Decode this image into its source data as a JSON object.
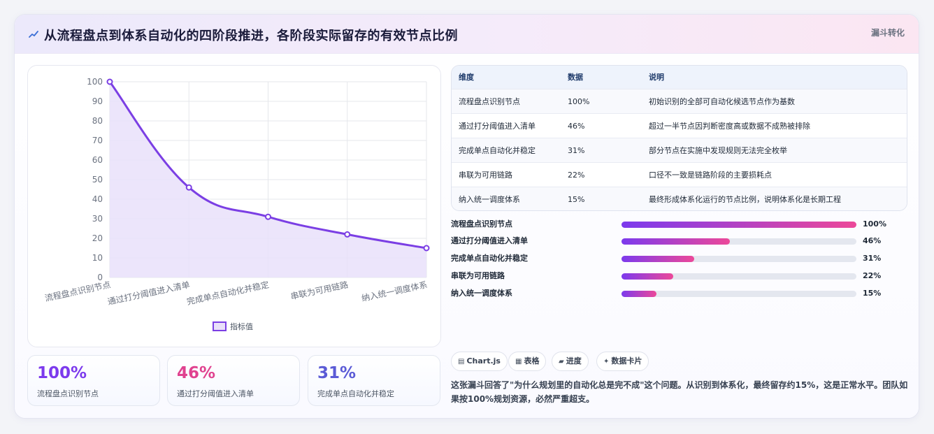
{
  "header": {
    "title_icon": "trend-icon",
    "title": "从流程盘点到体系自动化的四阶段推进，各阶段实际留存的有效节点比例",
    "tag": "漏斗转化"
  },
  "chart_data": {
    "type": "area",
    "categories": [
      "流程盘点识别节点",
      "通过打分阈值进入清单",
      "完成单点自动化并稳定",
      "串联为可用链路",
      "纳入统一调度体系"
    ],
    "series": [
      {
        "name": "指标值",
        "values": [
          100,
          46,
          31,
          22,
          15
        ]
      }
    ],
    "ylim": [
      0,
      100
    ],
    "yticks": [
      0,
      10,
      20,
      30,
      40,
      50,
      60,
      70,
      80,
      90,
      100
    ],
    "grid": true,
    "legend": "bottom",
    "colors": {
      "line": "#7b3fe4",
      "fill": "#e9e0fa"
    }
  },
  "kpis": [
    {
      "value": "100%",
      "label": "流程盘点识别节点",
      "color": "#7c3aed"
    },
    {
      "value": "46%",
      "label": "通过打分阈值进入清单",
      "color": "#e0428f"
    },
    {
      "value": "31%",
      "label": "完成单点自动化并稳定",
      "color": "#5b5bd6"
    }
  ],
  "table": {
    "headers": [
      "维度",
      "数据",
      "说明"
    ],
    "rows": [
      [
        "流程盘点识别节点",
        "100%",
        "初始识别的全部可自动化候选节点作为基数"
      ],
      [
        "通过打分阈值进入清单",
        "46%",
        "超过一半节点因判断密度高或数据不成熟被排除"
      ],
      [
        "完成单点自动化并稳定",
        "31%",
        "部分节点在实施中发现规则无法完全枚举"
      ],
      [
        "串联为可用链路",
        "22%",
        "口径不一致是链路阶段的主要损耗点"
      ],
      [
        "纳入统一调度体系",
        "15%",
        "最终形成体系化运行的节点比例，说明体系化是长期工程"
      ]
    ]
  },
  "progress": [
    {
      "label": "流程盘点识别节点",
      "value": 100,
      "display": "100%"
    },
    {
      "label": "通过打分阈值进入清单",
      "value": 46,
      "display": "46%"
    },
    {
      "label": "完成单点自动化并稳定",
      "value": 31,
      "display": "31%"
    },
    {
      "label": "串联为可用链路",
      "value": 22,
      "display": "22%"
    },
    {
      "label": "纳入统一调度体系",
      "value": 15,
      "display": "15%"
    }
  ],
  "chips": [
    {
      "icon": "chart-icon",
      "glyph": "▤",
      "label": "Chart.js"
    },
    {
      "icon": "table-icon",
      "glyph": "▦",
      "label": "表格"
    },
    {
      "icon": "progress-icon",
      "glyph": "▰",
      "label": "进度"
    },
    {
      "icon": "sparkle-icon",
      "glyph": "✦",
      "label": "数据卡片"
    }
  ],
  "note": "这张漏斗回答了\"为什么规划里的自动化总是完不成\"这个问题。从识别到体系化，最终留存约15%，这是正常水平。团队如果按100%规划资源，必然严重超支。"
}
